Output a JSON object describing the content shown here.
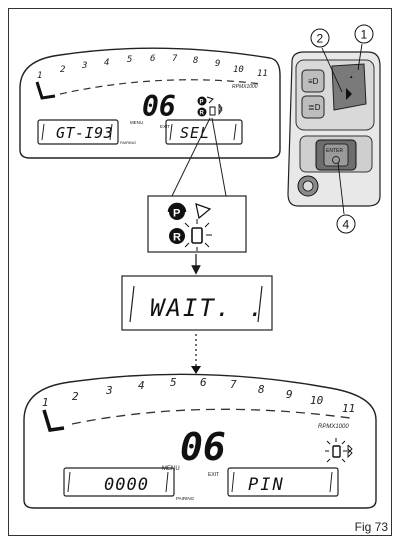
{
  "figure_label": "Fig 73",
  "dashboard_top": {
    "scale": [
      "1",
      "2",
      "3",
      "4",
      "5",
      "6",
      "7",
      "8",
      "9",
      "10",
      "11"
    ],
    "rpm_label": "RPMX1000",
    "gear": "06",
    "menu_label": "MENU",
    "exit_label": "EXIT",
    "left_display": "GT-I93",
    "right_display": "SEL",
    "pairing_label": "PAIRING"
  },
  "zoom_icons": {
    "p_label": "P",
    "r_label": "R"
  },
  "wait_display": "WAIT. .",
  "dashboard_bottom": {
    "scale": [
      "1",
      "2",
      "3",
      "4",
      "5",
      "6",
      "7",
      "8",
      "9",
      "10",
      "11"
    ],
    "rpm_label": "RPMX1000",
    "gear": "06",
    "menu_label": "MENU",
    "exit_label": "EXIT",
    "left_display": "0000",
    "right_display": "PIN",
    "pairing_label": "PAIRING"
  },
  "callouts": [
    "1",
    "2",
    "4"
  ],
  "enter_label": "ENTER"
}
